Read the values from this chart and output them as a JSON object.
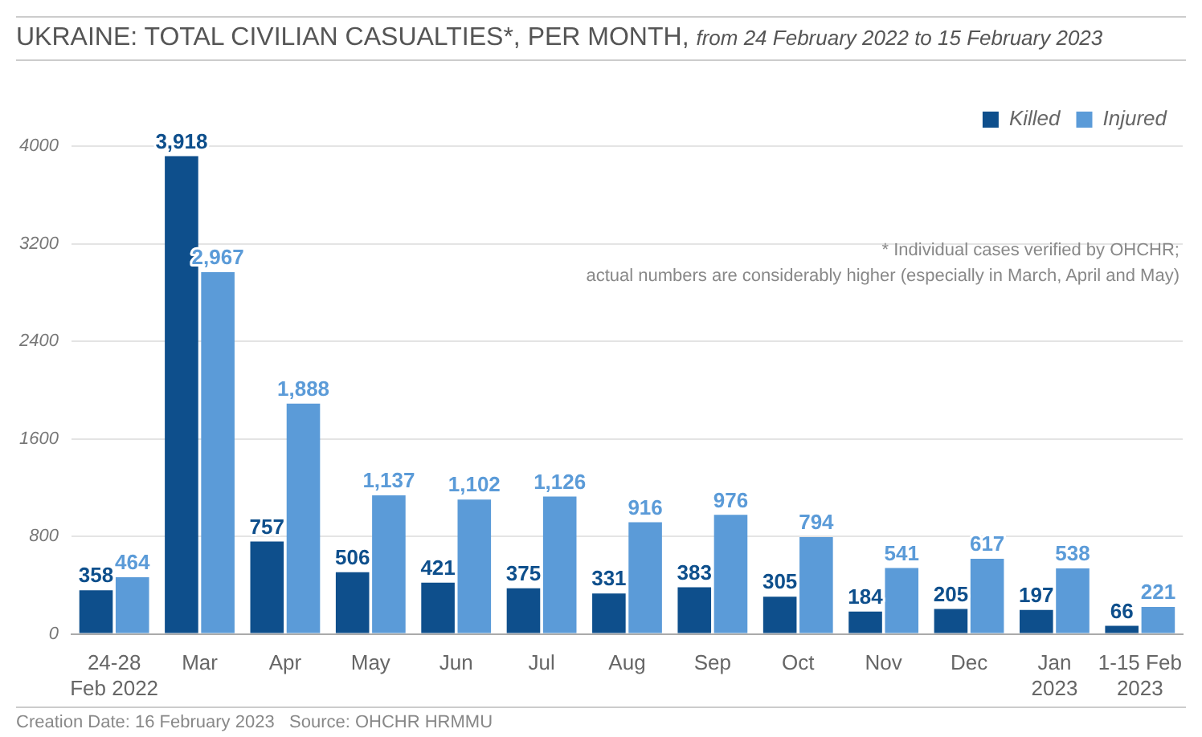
{
  "chart_data": {
    "type": "bar",
    "title": "UKRAINE: TOTAL CIVILIAN CASUALTIES*, PER MONTH,",
    "subtitle": "from 24 February 2022 to 15 February 2023",
    "categories": [
      "24-28\nFeb 2022",
      "Mar",
      "Apr",
      "May",
      "Jun",
      "Jul",
      "Aug",
      "Sep",
      "Oct",
      "Nov",
      "Dec",
      "Jan\n2023",
      "1-15 Feb\n2023"
    ],
    "series": [
      {
        "name": "Killed",
        "color": "#0e4f8c",
        "values": [
          358,
          3918,
          757,
          506,
          421,
          375,
          331,
          383,
          305,
          184,
          205,
          197,
          66
        ],
        "value_labels": [
          "358",
          "3,918",
          "757",
          "506",
          "421",
          "375",
          "331",
          "383",
          "305",
          "184",
          "205",
          "197",
          "66"
        ]
      },
      {
        "name": "Injured",
        "color": "#5b9bd8",
        "values": [
          464,
          2967,
          1888,
          1137,
          1102,
          1126,
          916,
          976,
          794,
          541,
          617,
          538,
          221
        ],
        "value_labels": [
          "464",
          "2,967",
          "1,888",
          "1,137",
          "1,102",
          "1,126",
          "916",
          "976",
          "794",
          "541",
          "617",
          "538",
          "221"
        ]
      }
    ],
    "ylim": [
      0,
      4000
    ],
    "yticks": [
      0,
      800,
      1600,
      2400,
      3200,
      4000
    ],
    "grid": "y",
    "legend": "top right",
    "annotations": [
      "* Individual cases verified by OHCHR;\nactual numbers are considerably higher (especially in March, April and May)",
      "Creation Date: 16 February 2023",
      "Source: OHCHR HRMMU"
    ]
  }
}
